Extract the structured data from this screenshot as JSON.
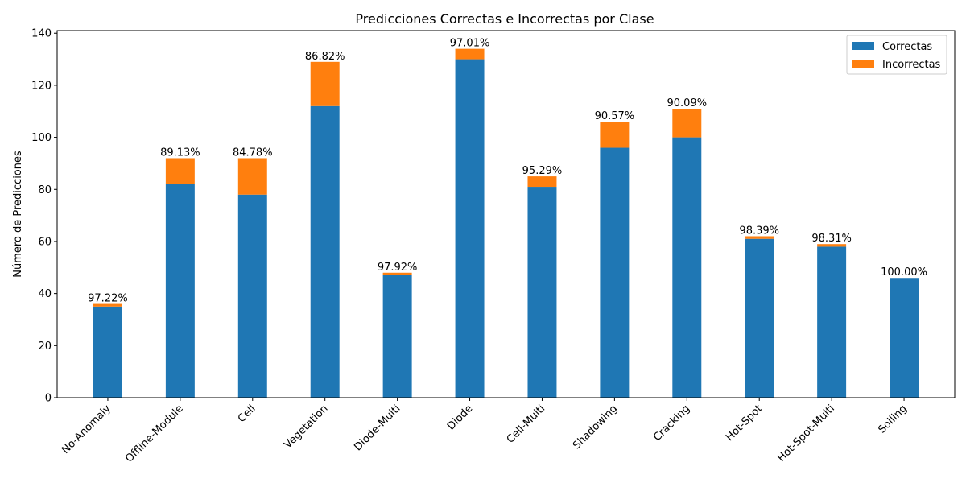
{
  "chart_data": {
    "type": "bar",
    "stacked": true,
    "title": "Predicciones Correctas e Incorrectas por Clase",
    "xlabel": "",
    "ylabel": "Número de Predicciones",
    "ylim": [
      0,
      141
    ],
    "yticks": [
      0,
      20,
      40,
      60,
      80,
      100,
      120,
      140
    ],
    "grid": false,
    "legend_position": "top-right",
    "categories": [
      "No-Anomaly",
      "Offline-Module",
      "Cell",
      "Vegetation",
      "Diode-Multi",
      "Diode",
      "Cell-Multi",
      "Shadowing",
      "Cracking",
      "Hot-Spot",
      "Hot-Spot-Multi",
      "Soiling"
    ],
    "series": [
      {
        "name": "Correctas",
        "color": "#1f77b4",
        "values": [
          35,
          82,
          78,
          112,
          47,
          130,
          81,
          96,
          100,
          61,
          58,
          46
        ]
      },
      {
        "name": "Incorrectas",
        "color": "#ff7f0e",
        "values": [
          1,
          10,
          14,
          17,
          1,
          4,
          4,
          10,
          11,
          1,
          1,
          0
        ]
      }
    ],
    "annotations": [
      "97.22%",
      "89.13%",
      "84.78%",
      "86.82%",
      "97.92%",
      "97.01%",
      "95.29%",
      "90.57%",
      "90.09%",
      "98.39%",
      "98.31%",
      "100.00%"
    ]
  }
}
